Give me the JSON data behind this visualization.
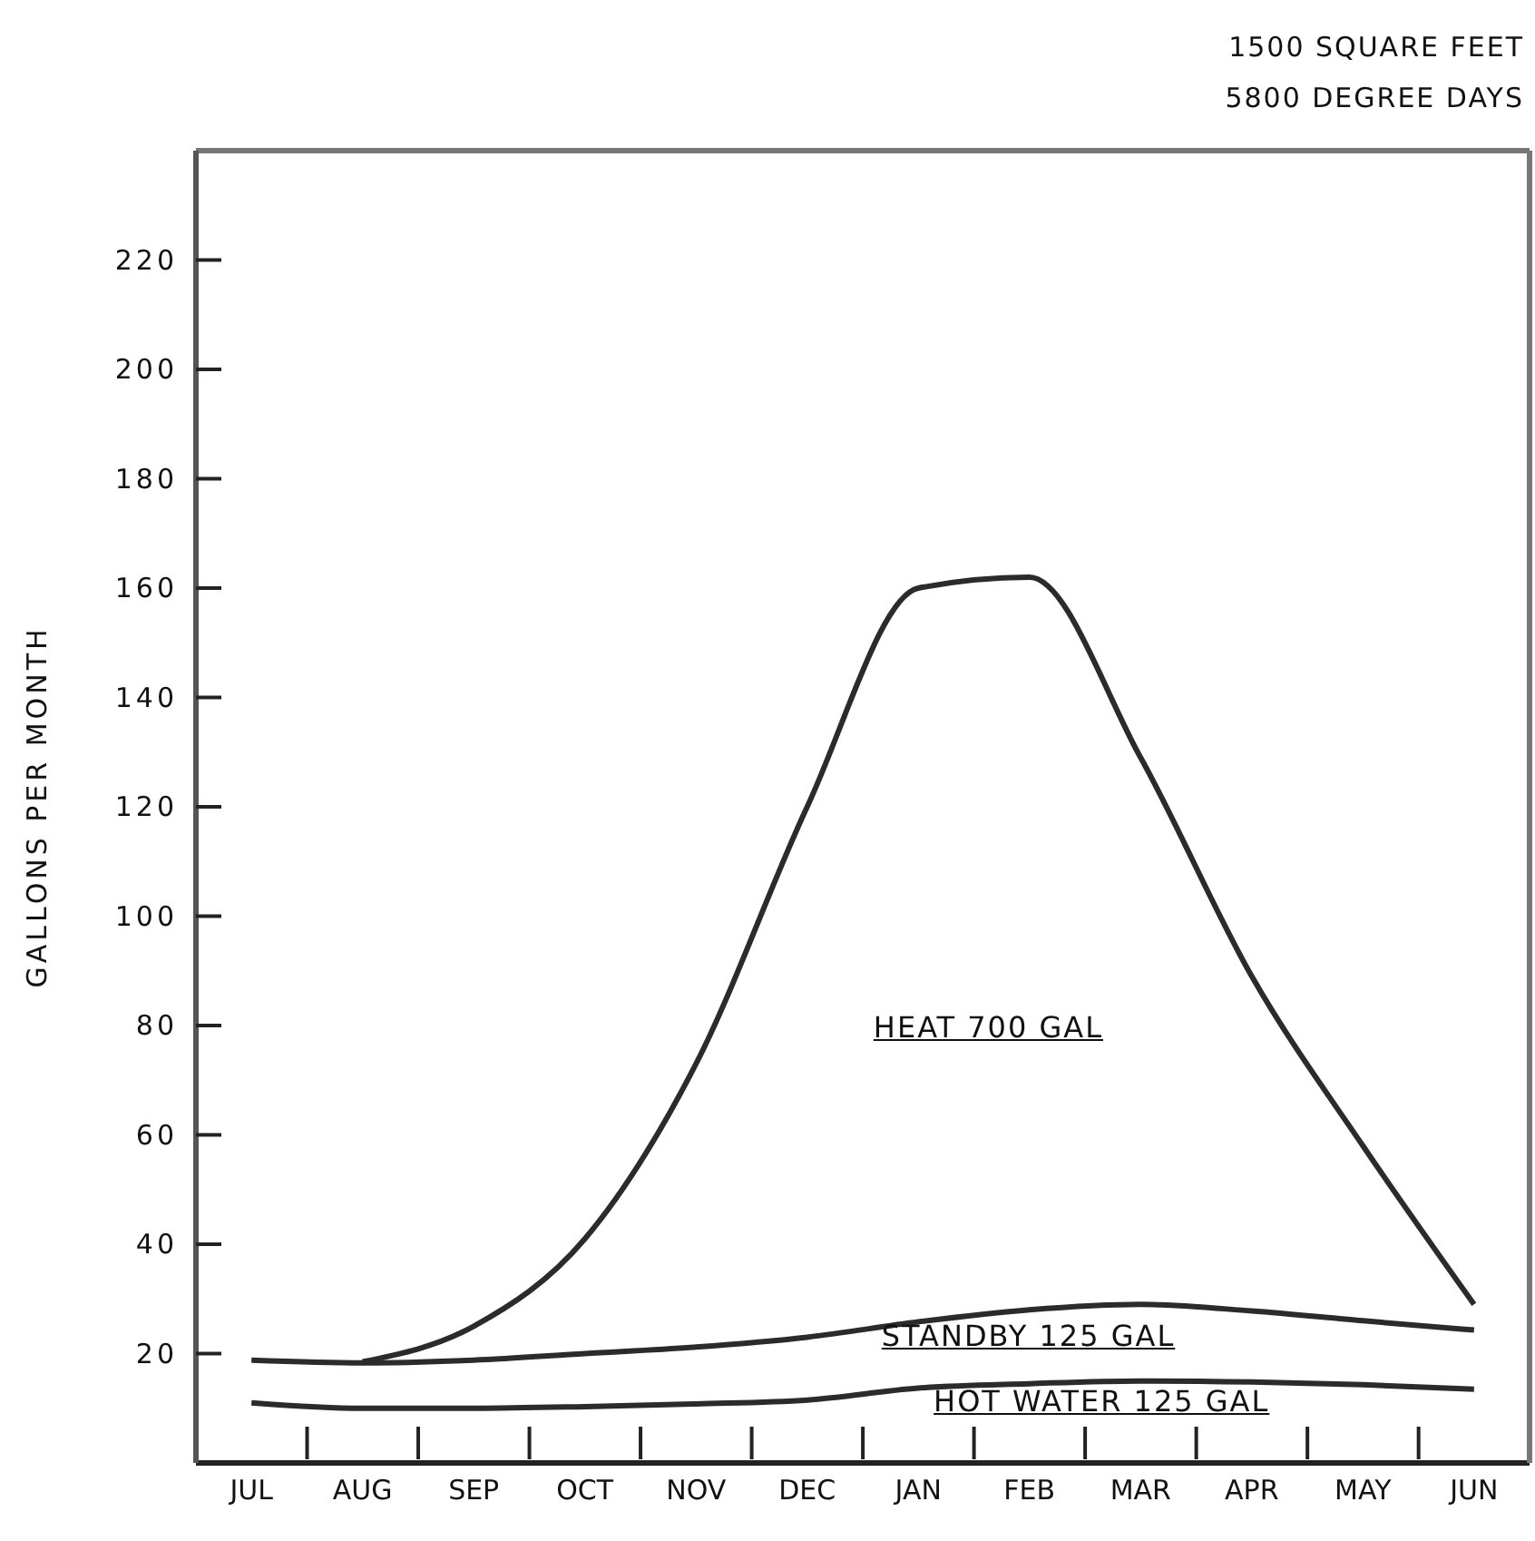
{
  "chart_data": {
    "type": "line",
    "title": "1500 SQUARE FEET",
    "subtitle": "5800 DEGREE DAYS",
    "ylabel": "GALLONS PER MONTH",
    "categories": [
      "JUL",
      "AUG",
      "SEP",
      "OCT",
      "NOV",
      "DEC",
      "JAN",
      "FEB",
      "MAR",
      "APR",
      "MAY",
      "JUN"
    ],
    "ylim": [
      0,
      240
    ],
    "yticks": [
      20,
      40,
      60,
      80,
      100,
      120,
      140,
      160,
      180,
      200,
      220
    ],
    "grid": false,
    "legend": false,
    "marker": "none",
    "line_style": "solid",
    "series": [
      {
        "color": "#2b2b2b",
        "values": [
          null,
          18.5,
          25,
          41,
          73,
          120,
          160,
          162,
          129,
          89,
          58,
          29
        ]
      },
      {
        "color": "#2b2b2b",
        "values": [
          18.8,
          18.3,
          18.8,
          20,
          21.2,
          23,
          25.8,
          28,
          29,
          27.8,
          26,
          24.3
        ]
      },
      {
        "color": "#2b2b2b",
        "values": [
          11,
          10,
          10,
          10.3,
          10.8,
          11.5,
          13.7,
          14.5,
          15,
          14.8,
          14.3,
          13.5
        ]
      }
    ],
    "annotations": [
      "HEAT 700 GAL",
      "STANDBY 125 GAL",
      "HOT WATER 125 GAL"
    ]
  }
}
